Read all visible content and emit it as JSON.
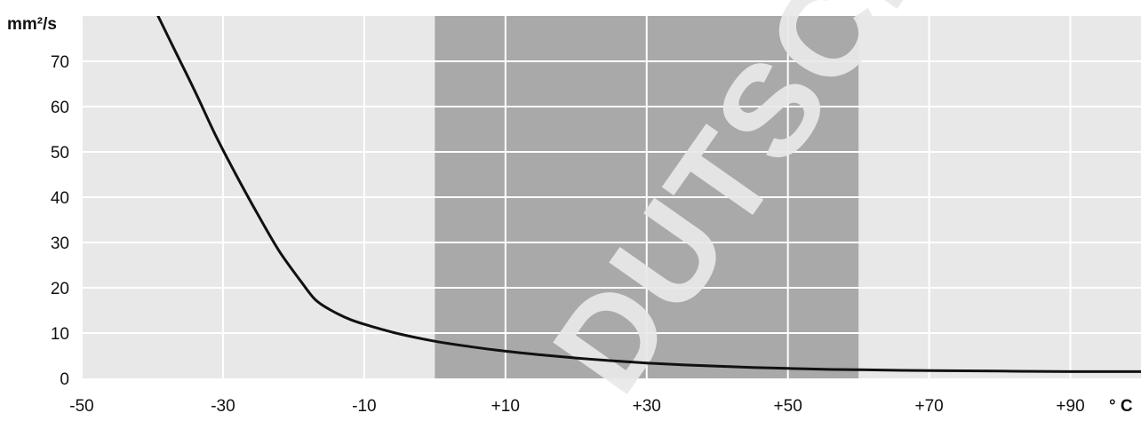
{
  "chart_data": {
    "type": "line",
    "title": "",
    "xlabel": "° C",
    "ylabel": "mm²/s",
    "xlim": [
      -50,
      100
    ],
    "ylim": [
      0,
      80
    ],
    "x_ticks": [
      -50,
      -30,
      -10,
      10,
      30,
      50,
      70,
      90
    ],
    "x_tick_labels": [
      "-50",
      "-30",
      "-10",
      "+10",
      "+30",
      "+50",
      "+70",
      "+90"
    ],
    "y_ticks": [
      0,
      10,
      20,
      30,
      40,
      50,
      60,
      70
    ],
    "y_tick_labels": [
      "0",
      "10",
      "20",
      "30",
      "40",
      "50",
      "60",
      "70"
    ],
    "grid": true,
    "highlighted_range": [
      0,
      60
    ],
    "series": [
      {
        "color": "#111111",
        "x": [
          -39.5,
          -37,
          -34,
          -31,
          -28,
          -25,
          -22,
          -19,
          -17,
          -15,
          -12,
          -9,
          -5,
          0,
          5,
          10,
          15,
          20,
          25,
          30,
          35,
          40,
          45,
          50,
          55,
          60,
          70,
          80,
          90,
          100
        ],
        "y": [
          81,
          73,
          63.5,
          53.5,
          44.5,
          36,
          28,
          21.5,
          17.5,
          15.3,
          13,
          11.5,
          9.8,
          8.2,
          7.0,
          6.0,
          5.2,
          4.5,
          3.9,
          3.4,
          3.0,
          2.7,
          2.4,
          2.2,
          2.0,
          1.9,
          1.7,
          1.6,
          1.5,
          1.5
        ]
      }
    ]
  },
  "watermark": "DUTSCHER"
}
